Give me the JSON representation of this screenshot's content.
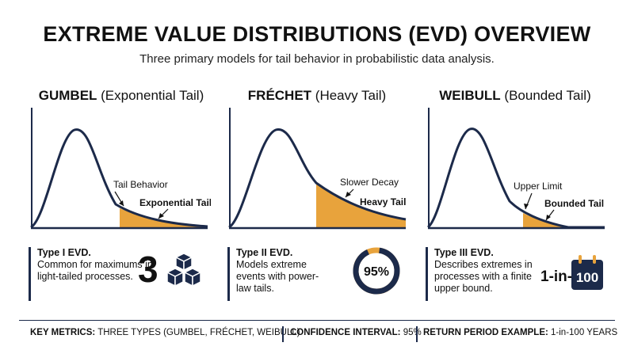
{
  "header": {
    "title": "EXTREME VALUE DISTRIBUTIONS (EVD) OVERVIEW",
    "subtitle": "Three primary models for tail behavior in probabilistic data analysis."
  },
  "panels": [
    {
      "name_bold": "GUMBEL",
      "name_rest": " (Exponential Tail)",
      "annotation": "Tail Behavior",
      "tail_label": "Exponential Tail",
      "type_label": "Type I EVD.",
      "description": "Common for maximums in light-tailed processes.",
      "metric": "3",
      "metric_icon": "cubes-icon"
    },
    {
      "name_bold": "FRÉCHET",
      "name_rest": " (Heavy Tail)",
      "annotation": "Slower Decay",
      "tail_label": "Heavy Tail",
      "type_label": "Type II EVD.",
      "description": "Models extreme events with power-law tails.",
      "metric": "95%",
      "metric_fraction": 0.95,
      "metric_icon": "donut-gauge-icon"
    },
    {
      "name_bold": "WEIBULL",
      "name_rest": " (Bounded Tail)",
      "annotation": "Upper Limit",
      "tail_label": "Bounded Tail",
      "type_label": "Type III EVD.",
      "description": "Describes extremes in processes with a finite upper bound.",
      "metric_prefix": "1-in-",
      "metric": "100",
      "metric_icon": "calendar-icon"
    }
  ],
  "footer": {
    "key_metrics_label": "KEY METRICS:",
    "key_metrics_value": " THREE TYPES (GUMBEL, FRÉCHET, WEIBULL)",
    "confidence_label": "CONFIDENCE INTERVAL:",
    "confidence_value": " 95%",
    "return_label": "RETURN PERIOD EXAMPLE:",
    "return_value": " 1-in-100 YEARS"
  },
  "colors": {
    "navy": "#1c2a4a",
    "tail_fill": "#e8a33c",
    "text": "#111111"
  }
}
